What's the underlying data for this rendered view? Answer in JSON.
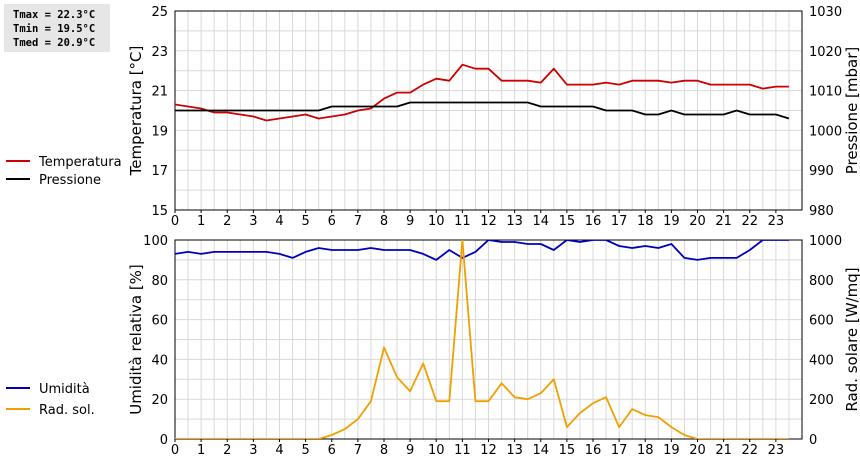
{
  "stats": {
    "tmax": "Tmax = 22.3°C",
    "tmin": "Tmin = 19.5°C",
    "tmed": "Tmed = 20.9°C"
  },
  "colors": {
    "temperature": "#cc0000",
    "pressure": "#000000",
    "humidity": "#0000bb",
    "radiation": "#f0a000"
  },
  "chart_data": [
    {
      "type": "line",
      "x_ticks": [
        "0",
        "1",
        "2",
        "3",
        "4",
        "5",
        "6",
        "7",
        "8",
        "9",
        "10",
        "11",
        "12",
        "13",
        "14",
        "15",
        "16",
        "17",
        "18",
        "19",
        "20",
        "21",
        "22",
        "23"
      ],
      "xlim": [
        0,
        24
      ],
      "ylabel": "Temperatura [°C]",
      "ylim": [
        15,
        25
      ],
      "y_ticks": [
        "15",
        "17",
        "19",
        "21",
        "23",
        "25"
      ],
      "y2label": "Pressione [mbar]",
      "y2lim": [
        980,
        1030
      ],
      "y2_ticks": [
        "980",
        "990",
        "1000",
        "1010",
        "1020",
        "1030"
      ],
      "grid": true,
      "legend": "left",
      "series": [
        {
          "name": "Temperatura",
          "axis": "left",
          "x": [
            0,
            0.5,
            1,
            1.5,
            2,
            2.5,
            3,
            3.5,
            4,
            4.5,
            5,
            5.5,
            6,
            6.5,
            7,
            7.5,
            8,
            8.5,
            9,
            9.5,
            10,
            10.5,
            11,
            11.5,
            12,
            12.5,
            13,
            13.5,
            14,
            14.5,
            15,
            15.5,
            16,
            16.5,
            17,
            17.5,
            18,
            18.5,
            19,
            19.5,
            20,
            20.5,
            21,
            21.5,
            22,
            22.5,
            23,
            23.5
          ],
          "y": [
            20.3,
            20.2,
            20.1,
            19.9,
            19.9,
            19.8,
            19.7,
            19.5,
            19.6,
            19.7,
            19.8,
            19.6,
            19.7,
            19.8,
            20.0,
            20.1,
            20.6,
            20.9,
            20.9,
            21.3,
            21.6,
            21.5,
            22.3,
            22.1,
            22.1,
            21.5,
            21.5,
            21.5,
            21.4,
            22.1,
            21.3,
            21.3,
            21.3,
            21.4,
            21.3,
            21.5,
            21.5,
            21.5,
            21.4,
            21.5,
            21.5,
            21.3,
            21.3,
            21.3,
            21.3,
            21.1,
            21.2,
            21.2
          ]
        },
        {
          "name": "Pressione",
          "axis": "right",
          "x": [
            0,
            0.5,
            1,
            1.5,
            2,
            2.5,
            3,
            3.5,
            4,
            4.5,
            5,
            5.5,
            6,
            6.5,
            7,
            7.5,
            8,
            8.5,
            9,
            9.5,
            10,
            10.5,
            11,
            11.5,
            12,
            12.5,
            13,
            13.5,
            14,
            14.5,
            15,
            15.5,
            16,
            16.5,
            17,
            17.5,
            18,
            18.5,
            19,
            19.5,
            20,
            20.5,
            21,
            21.5,
            22,
            22.5,
            23,
            23.5
          ],
          "y": [
            1005,
            1005,
            1005,
            1005,
            1005,
            1005,
            1005,
            1005,
            1005,
            1005,
            1005,
            1005,
            1006,
            1006,
            1006,
            1006,
            1006,
            1006,
            1007,
            1007,
            1007,
            1007,
            1007,
            1007,
            1007,
            1007,
            1007,
            1007,
            1006,
            1006,
            1006,
            1006,
            1006,
            1005,
            1005,
            1005,
            1004,
            1004,
            1005,
            1004,
            1004,
            1004,
            1004,
            1005,
            1004,
            1004,
            1004,
            1003
          ]
        }
      ]
    },
    {
      "type": "line",
      "x_ticks": [
        "0",
        "1",
        "2",
        "3",
        "4",
        "5",
        "6",
        "7",
        "8",
        "9",
        "10",
        "11",
        "12",
        "13",
        "14",
        "15",
        "16",
        "17",
        "18",
        "19",
        "20",
        "21",
        "22",
        "23"
      ],
      "xlim": [
        0,
        24
      ],
      "ylabel": "Umidità relativa [%]",
      "ylim": [
        0,
        100
      ],
      "y_ticks": [
        "0",
        "20",
        "40",
        "60",
        "80",
        "100"
      ],
      "y2label": "Rad. solare [W/mq]",
      "y2lim": [
        0,
        1000
      ],
      "y2_ticks": [
        "0",
        "200",
        "400",
        "600",
        "800",
        "1000"
      ],
      "grid": true,
      "legend": "left",
      "series": [
        {
          "name": "Umidità",
          "axis": "left",
          "x": [
            0,
            0.5,
            1,
            1.5,
            2,
            2.5,
            3,
            3.5,
            4,
            4.5,
            5,
            5.5,
            6,
            6.5,
            7,
            7.5,
            8,
            8.5,
            9,
            9.5,
            10,
            10.5,
            11,
            11.5,
            12,
            12.5,
            13,
            13.5,
            14,
            14.5,
            15,
            15.5,
            16,
            16.5,
            17,
            17.5,
            18,
            18.5,
            19,
            19.5,
            20,
            20.5,
            21,
            21.5,
            22,
            22.5,
            23,
            23.5
          ],
          "y": [
            93,
            94,
            93,
            94,
            94,
            94,
            94,
            94,
            93,
            91,
            94,
            96,
            95,
            95,
            95,
            96,
            95,
            95,
            95,
            93,
            90,
            95,
            91,
            94,
            100,
            99,
            99,
            98,
            98,
            95,
            100,
            99,
            100,
            100,
            97,
            96,
            97,
            96,
            98,
            91,
            90,
            91,
            91,
            91,
            95,
            100,
            100,
            100
          ]
        },
        {
          "name": "Rad. sol.",
          "axis": "right",
          "x": [
            0,
            0.5,
            1,
            1.5,
            2,
            2.5,
            3,
            3.5,
            4,
            4.5,
            5,
            5.5,
            6,
            6.5,
            7,
            7.5,
            8,
            8.5,
            9,
            9.5,
            10,
            10.5,
            11,
            11.5,
            12,
            12.5,
            13,
            13.5,
            14,
            14.5,
            15,
            15.5,
            16,
            16.5,
            17,
            17.5,
            18,
            18.5,
            19,
            19.5,
            20,
            20.5,
            21,
            21.5,
            22,
            22.5,
            23,
            23.5
          ],
          "y": [
            0,
            0,
            0,
            0,
            0,
            0,
            0,
            0,
            0,
            0,
            0,
            0,
            20,
            50,
            100,
            190,
            460,
            310,
            240,
            380,
            190,
            190,
            1000,
            190,
            190,
            280,
            210,
            200,
            230,
            300,
            60,
            130,
            180,
            210,
            60,
            150,
            120,
            110,
            60,
            20,
            0,
            0,
            0,
            0,
            0,
            0,
            0,
            0
          ]
        }
      ]
    }
  ]
}
